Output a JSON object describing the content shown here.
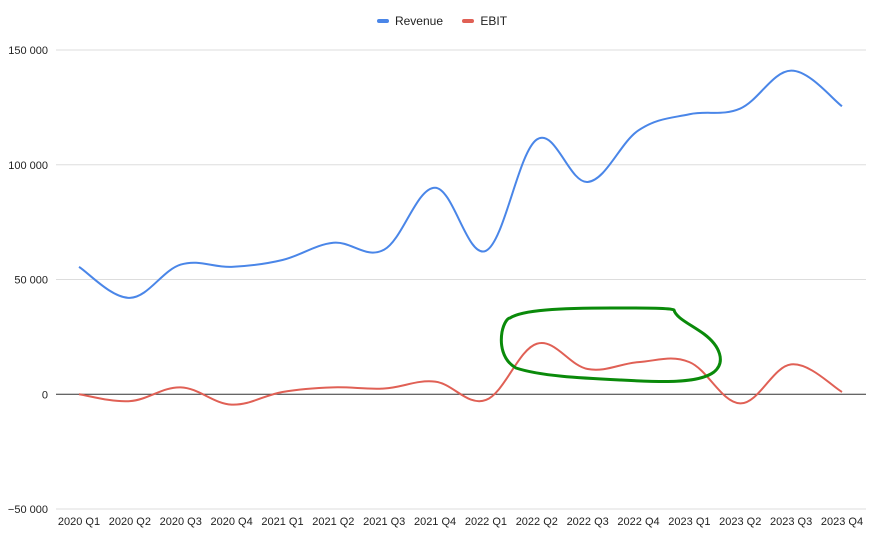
{
  "chart_data": {
    "type": "line",
    "categories": [
      "2020 Q1",
      "2020 Q2",
      "2020 Q3",
      "2020 Q4",
      "2021 Q1",
      "2021 Q2",
      "2021 Q3",
      "2021 Q4",
      "2022 Q1",
      "2022 Q2",
      "2022 Q3",
      "2022 Q4",
      "2023 Q1",
      "2023 Q2",
      "2023 Q3",
      "2023 Q4"
    ],
    "series": [
      {
        "name": "Revenue",
        "color": "#4a86e8",
        "values": [
          55500,
          42000,
          56500,
          55500,
          58500,
          66000,
          63000,
          90000,
          62500,
          111000,
          92500,
          115000,
          122000,
          124500,
          141000,
          125500
        ]
      },
      {
        "name": "EBIT",
        "color": "#e06055",
        "values": [
          0,
          -3000,
          3000,
          -4500,
          1000,
          3000,
          2500,
          5500,
          -2500,
          22000,
          11000,
          14000,
          14000,
          -4000,
          13000,
          1000
        ]
      }
    ],
    "y_ticks": [
      -50000,
      0,
      50000,
      100000,
      150000
    ],
    "y_tick_labels": [
      "−50 000",
      "0",
      "50 000",
      "100 000",
      "150 000"
    ],
    "ylim": [
      -50000,
      150000
    ],
    "grid": true,
    "legend_position": "top-center",
    "annotation": {
      "shape": "hand-drawn loop",
      "color": "#0a8a0a",
      "around": [
        "2022 Q2",
        "2022 Q3",
        "2022 Q4",
        "2023 Q1"
      ]
    }
  }
}
